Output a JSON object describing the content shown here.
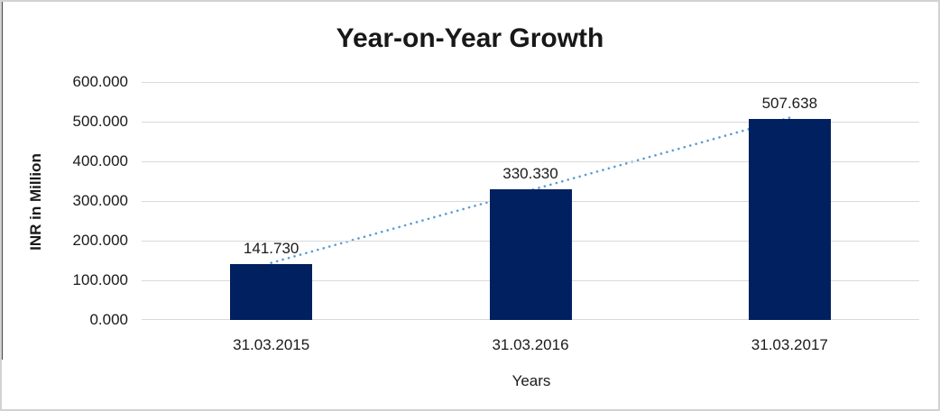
{
  "chart_data": {
    "type": "bar",
    "title": "Year-on-Year Growth",
    "xlabel": "Years",
    "ylabel": "INR in Million",
    "categories": [
      "31.03.2015",
      "31.03.2016",
      "31.03.2017"
    ],
    "values": [
      141.73,
      330.33,
      507.638
    ],
    "data_labels": [
      "141.730",
      "330.330",
      "507.638"
    ],
    "ylim": [
      0,
      600
    ],
    "ytick_labels": [
      "600.000",
      "500.000",
      "400.000",
      "300.000",
      "200.000",
      "100.000",
      "0.000"
    ],
    "grid": true,
    "legend": "none",
    "trendline": {
      "type": "linear",
      "style": "dotted",
      "from": "31.03.2015",
      "to": "31.03.2017"
    },
    "colors": {
      "bar": "#002060",
      "trendline": "#5b9bd5",
      "gridline": "#d9d9d9",
      "text": "#1a1a1a",
      "title_text": "#181818",
      "frame_border": "#d2d2d2",
      "left_edge_line": "#474747"
    }
  }
}
